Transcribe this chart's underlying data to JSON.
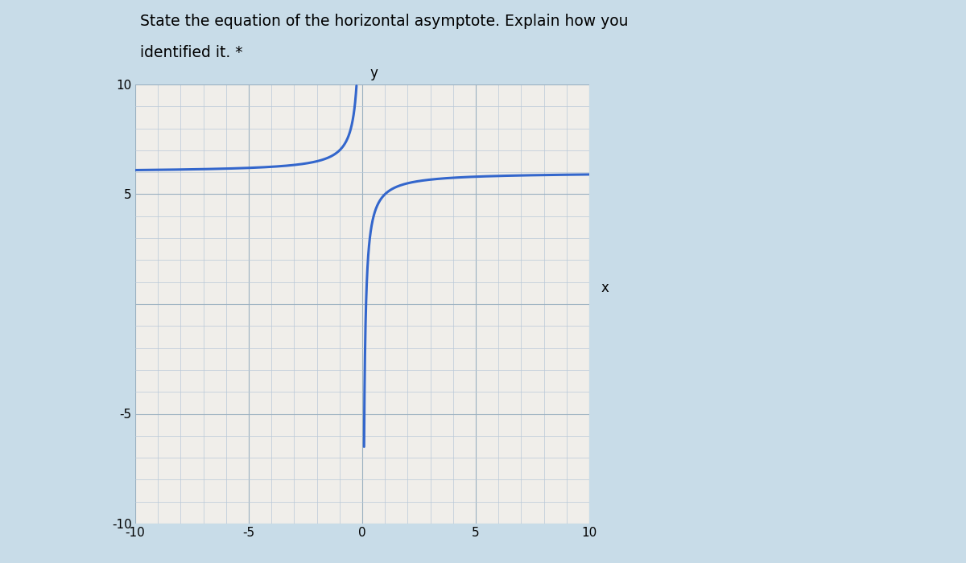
{
  "title_line1": "State the equation of the horizontal asymptote. Explain how you",
  "title_line2": "identified it. *",
  "title_fontsize": 13.5,
  "background_color": "#c8dce8",
  "plot_bg_color": "#f0eeea",
  "grid_color_minor": "#b8c8d8",
  "grid_color_major": "#9ab0c0",
  "curve_color": "#3366cc",
  "curve_linewidth": 2.2,
  "xlim": [
    -10,
    10
  ],
  "ylim": [
    -10,
    10
  ],
  "xticks": [
    -10,
    -5,
    0,
    5,
    10
  ],
  "yticks": [
    -10,
    -5,
    5,
    10
  ],
  "ytick_labels": [
    "-10",
    "-5",
    "5",
    "10"
  ],
  "tick_fontsize": 11,
  "axis_label_x": "x",
  "axis_label_y": "y",
  "fig_width": 12,
  "fig_height": 7,
  "asymptote_y": 6,
  "func_shift": 6,
  "func_scale": 1.0,
  "left_end_x": -10,
  "right_end_x": 10
}
